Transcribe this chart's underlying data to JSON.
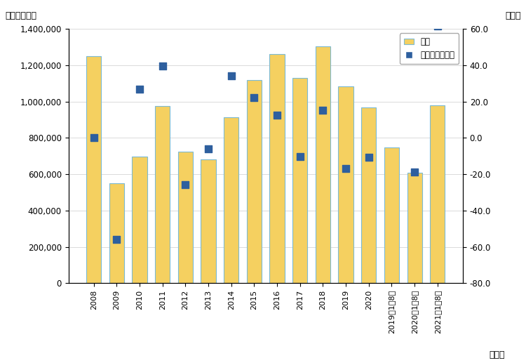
{
  "years": [
    "2008",
    "2009",
    "2010",
    "2011",
    "2012",
    "2013",
    "2014",
    "2015",
    "2016",
    "2017",
    "2018",
    "2019",
    "2020",
    "2019年1～8月",
    "2020年1～8月",
    "2021年1～8月"
  ],
  "bar_values": [
    1250998,
    551471,
    699013,
    975120,
    725084,
    681284,
    914709,
    1119348,
    1260509,
    1130898,
    1303525,
    1083553,
    968580,
    746711,
    606582,
    980191
  ],
  "yoy_values": [
    0.0,
    -55.9,
    26.8,
    39.5,
    -25.6,
    -6.0,
    34.3,
    22.4,
    12.6,
    -10.3,
    15.3,
    -16.9,
    -10.6,
    null,
    -18.8,
    61.6
  ],
  "bar_color": "#F5D060",
  "bar_edge_color": "#7BBAD4",
  "dot_color": "#2E5F9E",
  "title_left": "（百万ドル）",
  "title_right": "（％）",
  "xlabel": "（年）",
  "legend_bar": "金額",
  "legend_dot": "前年比（右軸）",
  "ylim_left": [
    0,
    1400000
  ],
  "ylim_right": [
    -80.0,
    60.0
  ],
  "yticks_left": [
    0,
    200000,
    400000,
    600000,
    800000,
    1000000,
    1200000,
    1400000
  ],
  "yticks_right": [
    -80.0,
    -60.0,
    -40.0,
    -20.0,
    0.0,
    20.0,
    40.0,
    60.0
  ],
  "figsize": [
    7.5,
    5.17
  ],
  "dpi": 100
}
